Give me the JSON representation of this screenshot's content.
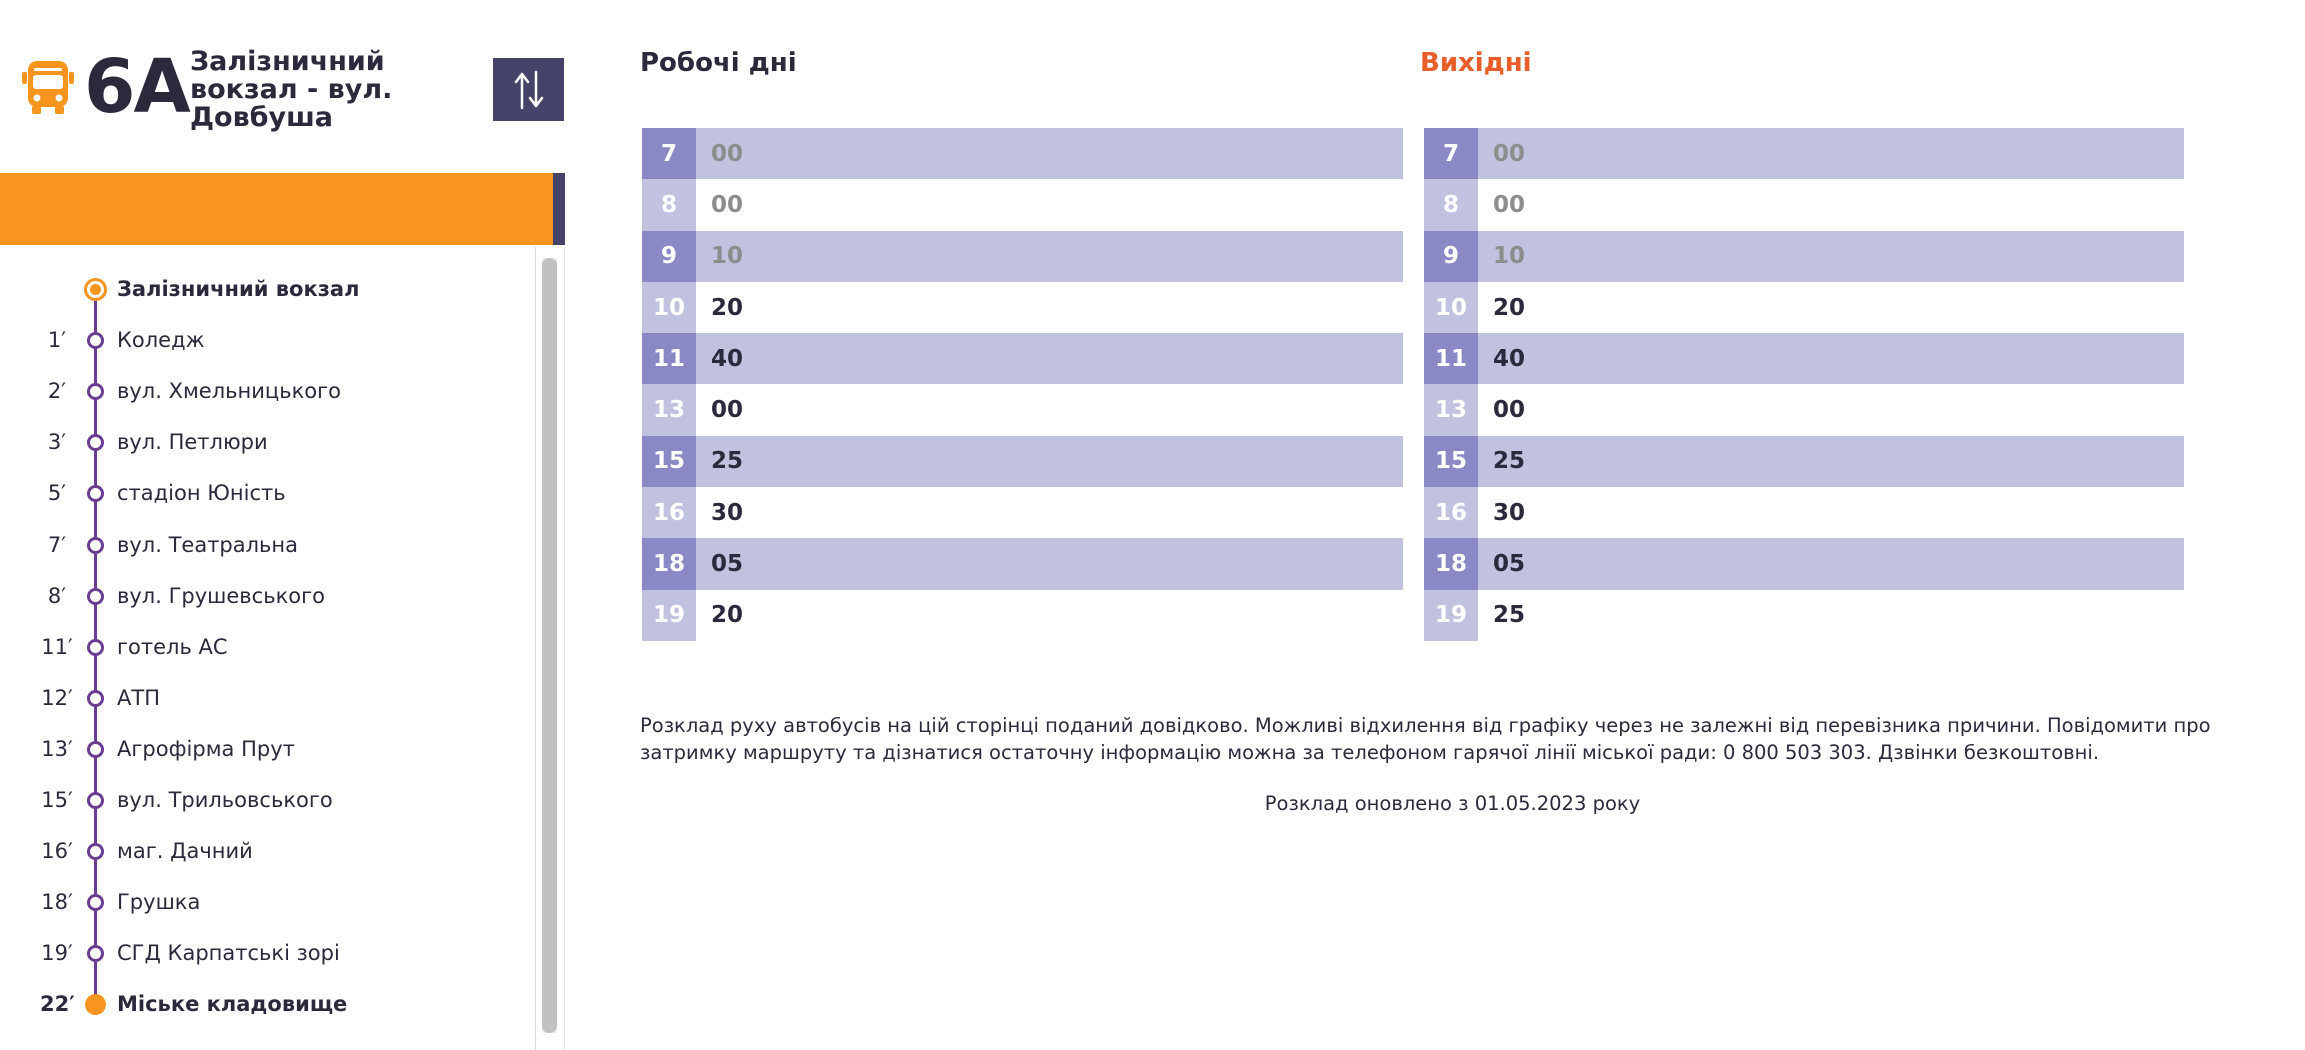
{
  "route": {
    "number": "6А",
    "name": "Залізничний вокзал - вул. Довбуша",
    "icon": "bus-icon",
    "swap_icon": "swap-direction-icon"
  },
  "colors": {
    "accent": "#f7951f",
    "route_line": "#6a3d92",
    "dark_purple": "#45436a",
    "weekend_title": "#e85d2a",
    "row_dark": "#c1c1e0",
    "hour_dark": "#8b88c6"
  },
  "stops": [
    {
      "time": "",
      "name": "Залізничний вокзал",
      "type": "first"
    },
    {
      "time": "1′",
      "name": "Коледж",
      "type": "mid"
    },
    {
      "time": "2′",
      "name": "вул. Хмельницького",
      "type": "mid"
    },
    {
      "time": "3′",
      "name": "вул. Петлюри",
      "type": "mid"
    },
    {
      "time": "5′",
      "name": "стадіон Юність",
      "type": "mid"
    },
    {
      "time": "7′",
      "name": "вул. Театральна",
      "type": "mid"
    },
    {
      "time": "8′",
      "name": "вул. Грушевського",
      "type": "mid"
    },
    {
      "time": "11′",
      "name": "готель АС",
      "type": "mid"
    },
    {
      "time": "12′",
      "name": "АТП",
      "type": "mid"
    },
    {
      "time": "13′",
      "name": "Агрофірма Прут",
      "type": "mid"
    },
    {
      "time": "15′",
      "name": "вул. Трильовського",
      "type": "mid"
    },
    {
      "time": "16′",
      "name": "маг. Дачний",
      "type": "mid"
    },
    {
      "time": "18′",
      "name": "Грушка",
      "type": "mid"
    },
    {
      "time": "19′",
      "name": "СГД Карпатські зорі",
      "type": "mid"
    },
    {
      "time": "22′",
      "name": "Міське кладовище",
      "type": "last"
    }
  ],
  "timetables": {
    "weekday": {
      "title": "Робочі дні",
      "rows": [
        {
          "hour": "7",
          "minutes": "00",
          "past": true
        },
        {
          "hour": "8",
          "minutes": "00",
          "past": true
        },
        {
          "hour": "9",
          "minutes": "10",
          "past": true
        },
        {
          "hour": "10",
          "minutes": "20",
          "past": false
        },
        {
          "hour": "11",
          "minutes": "40",
          "past": false
        },
        {
          "hour": "13",
          "minutes": "00",
          "past": false
        },
        {
          "hour": "15",
          "minutes": "25",
          "past": false
        },
        {
          "hour": "16",
          "minutes": "30",
          "past": false
        },
        {
          "hour": "18",
          "minutes": "05",
          "past": false
        },
        {
          "hour": "19",
          "minutes": "20",
          "past": false
        }
      ]
    },
    "weekend": {
      "title": "Вихідні",
      "rows": [
        {
          "hour": "7",
          "minutes": "00",
          "past": true
        },
        {
          "hour": "8",
          "minutes": "00",
          "past": true
        },
        {
          "hour": "9",
          "minutes": "10",
          "past": true
        },
        {
          "hour": "10",
          "minutes": "20",
          "past": false
        },
        {
          "hour": "11",
          "minutes": "40",
          "past": false
        },
        {
          "hour": "13",
          "minutes": "00",
          "past": false
        },
        {
          "hour": "15",
          "minutes": "25",
          "past": false
        },
        {
          "hour": "16",
          "minutes": "30",
          "past": false
        },
        {
          "hour": "18",
          "minutes": "05",
          "past": false
        },
        {
          "hour": "19",
          "minutes": "25",
          "past": false
        }
      ]
    }
  },
  "notice": {
    "text": "Розклад руху автобусів на цій сторінці поданий довідково. Можливі відхилення від графіку через не залежні від перевізника причини. Повідомити про затримку маршруту та дізнатися остаточну інформацію можна за телефоном гарячої лінії міської ради: 0 800 503 303. Дзвінки безкоштовні.",
    "updated": "Розклад оновлено з 01.05.2023 року"
  }
}
